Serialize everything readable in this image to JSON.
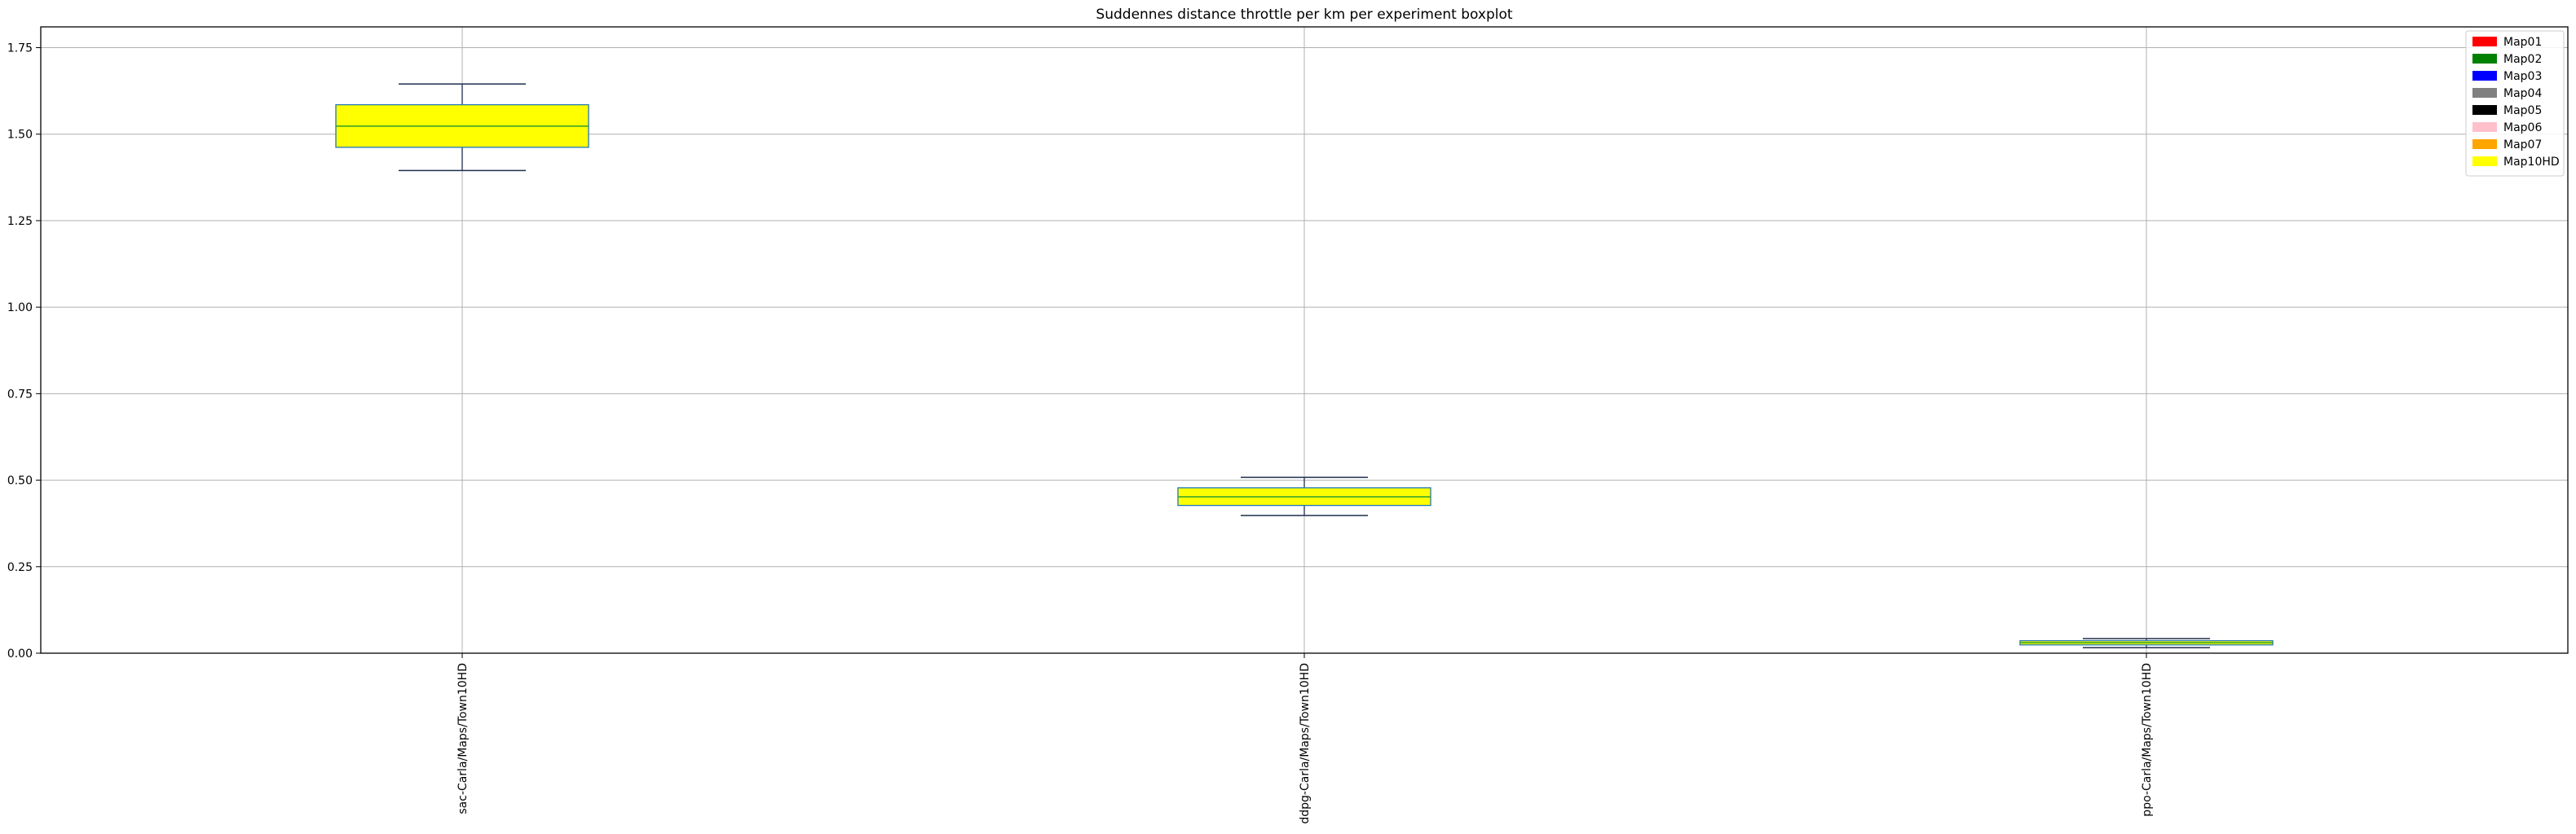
{
  "chart_data": {
    "type": "boxplot",
    "title": "Suddennes distance throttle per km per experiment boxplot",
    "xlabel": "",
    "ylabel": "",
    "ylim": [
      0,
      1.81
    ],
    "yticks": [
      "0.00",
      "0.25",
      "0.50",
      "0.75",
      "1.00",
      "1.25",
      "1.50",
      "1.75"
    ],
    "grid": true,
    "legend_position": "top-right",
    "categories": [
      "sac-Carla/Maps/Town10HD",
      "ddpg-Carla/Maps/Town10HD",
      "ppo-Carla/Maps/Town10HD"
    ],
    "series": [
      {
        "name": "Map10HD",
        "color": "#ffff00",
        "boxes": [
          {
            "whisker_low": 1.395,
            "q1": 1.462,
            "median": 1.523,
            "q3": 1.585,
            "whisker_high": 1.645
          },
          {
            "whisker_low": 0.398,
            "q1": 0.427,
            "median": 0.452,
            "q3": 0.478,
            "whisker_high": 0.508
          },
          {
            "whisker_low": 0.016,
            "q1": 0.024,
            "median": 0.03,
            "q3": 0.036,
            "whisker_high": 0.042
          }
        ]
      }
    ],
    "legend": [
      {
        "label": "Map01",
        "color": "#ff0000"
      },
      {
        "label": "Map02",
        "color": "#008000"
      },
      {
        "label": "Map03",
        "color": "#0000ff"
      },
      {
        "label": "Map04",
        "color": "#808080"
      },
      {
        "label": "Map05",
        "color": "#000000"
      },
      {
        "label": "Map06",
        "color": "#ffc0cb"
      },
      {
        "label": "Map07",
        "color": "#ffa500"
      },
      {
        "label": "Map10HD",
        "color": "#ffff00"
      }
    ],
    "colors": {
      "box_edge": "#1f77b4",
      "median_line": "#2ca02c",
      "whisker": "#1f2f4f",
      "grid": "#b0b0b0",
      "axes": "#000000"
    }
  }
}
